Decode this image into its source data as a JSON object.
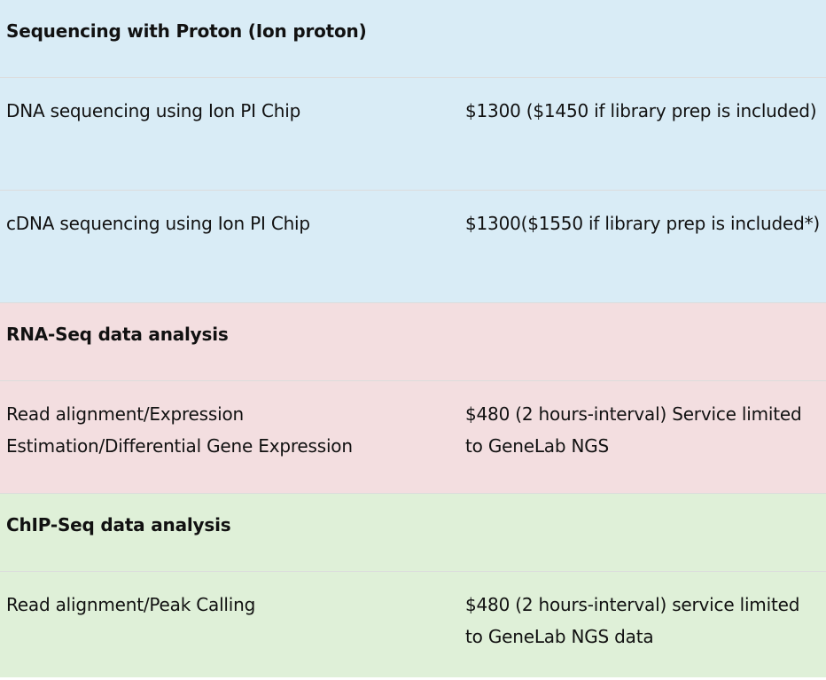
{
  "colors": {
    "blue": "#d9ecf6",
    "pink": "#f3dee0",
    "green": "#dff0d8"
  },
  "sections": [
    {
      "title": "Sequencing with Proton (Ion proton)",
      "rows": [
        {
          "service": "DNA sequencing using Ion PI Chip",
          "price": "$1300 ($1450 if library prep is included)"
        },
        {
          "service": "cDNA sequencing using Ion PI Chip",
          "price": "$1300($1550 if library prep is included*)"
        }
      ]
    },
    {
      "title": "RNA-Seq data analysis",
      "rows": [
        {
          "service": "Read alignment/Expression Estimation/Differential Gene Expression",
          "price": "$480 (2 hours-interval) Service limited to GeneLab NGS"
        }
      ]
    },
    {
      "title": "ChIP-Seq data analysis",
      "rows": [
        {
          "service": "Read alignment/Peak Calling",
          "price": "$480 (2 hours-interval) service limited to GeneLab NGS data"
        }
      ]
    }
  ]
}
